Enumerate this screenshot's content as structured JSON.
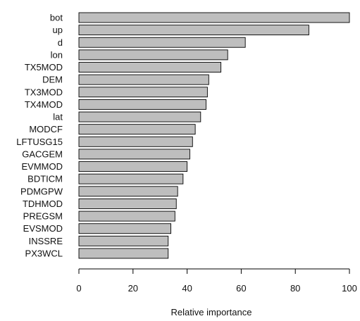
{
  "chart_data": {
    "type": "bar",
    "orientation": "horizontal",
    "categories": [
      "bot",
      "up",
      "d",
      "lon",
      "TX5MOD",
      "DEM",
      "TX3MOD",
      "TX4MOD",
      "lat",
      "MODCF",
      "LFTUSG15",
      "GACGEM",
      "EVMMOD",
      "BDTICM",
      "PDMGPW",
      "TDHMOD",
      "PREGSM",
      "EVSMOD",
      "INSSRE",
      "PX3WCL"
    ],
    "values": [
      100,
      85,
      61.5,
      55,
      52.5,
      48,
      47.5,
      47,
      45,
      43,
      42,
      41,
      40,
      38.5,
      36.5,
      36,
      35.5,
      34,
      33,
      33
    ],
    "xlabel": "Relative importance",
    "ylabel": "",
    "xlim": [
      0,
      100
    ],
    "xticks": [
      0,
      20,
      40,
      60,
      80,
      100
    ],
    "grid": false,
    "bar_color": "#bebebe",
    "bar_edge_color": "#000000"
  }
}
